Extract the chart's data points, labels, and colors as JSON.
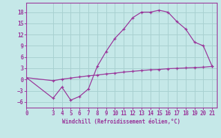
{
  "xlabel": "Windchill (Refroidissement éolien,°C)",
  "background_color": "#c5e8e8",
  "grid_color": "#a8d0d0",
  "line_color": "#993399",
  "xlim": [
    0,
    21.5
  ],
  "ylim": [
    -7.5,
    20.5
  ],
  "yticks": [
    -6,
    -3,
    0,
    3,
    6,
    9,
    12,
    15,
    18
  ],
  "xticks": [
    0,
    3,
    4,
    5,
    6,
    7,
    8,
    9,
    10,
    11,
    12,
    13,
    14,
    15,
    16,
    17,
    18,
    19,
    20,
    21
  ],
  "curve1_x": [
    0,
    3,
    4,
    5,
    6,
    7,
    8,
    9,
    10,
    11,
    12,
    13,
    14,
    15,
    16,
    17,
    18,
    19,
    20,
    21
  ],
  "curve1_y": [
    0.5,
    -5.0,
    -2.0,
    -5.5,
    -4.5,
    -2.5,
    3.5,
    7.5,
    11.0,
    13.5,
    16.5,
    18.0,
    18.0,
    18.5,
    18.0,
    15.5,
    13.5,
    10.0,
    9.0,
    3.5
  ],
  "curve2_x": [
    0,
    3,
    4,
    5,
    6,
    7,
    8,
    9,
    10,
    11,
    12,
    13,
    14,
    15,
    16,
    17,
    18,
    19,
    20,
    21
  ],
  "curve2_y": [
    0.5,
    -0.3,
    0.1,
    0.4,
    0.7,
    1.0,
    1.2,
    1.5,
    1.7,
    2.0,
    2.2,
    2.4,
    2.6,
    2.7,
    2.9,
    3.0,
    3.1,
    3.2,
    3.3,
    3.5
  ]
}
